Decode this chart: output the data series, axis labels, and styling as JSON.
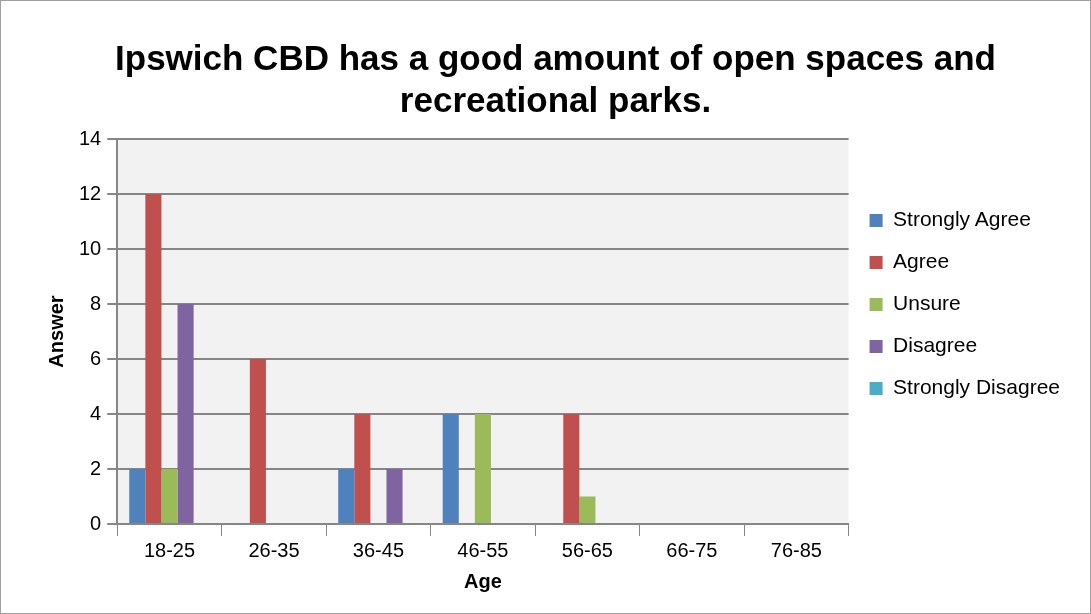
{
  "chart_data": {
    "type": "bar",
    "title": "Ipswich CBD has a good amount of open spaces and recreational parks.",
    "xlabel": "Age",
    "ylabel": "Answer",
    "categories": [
      "18-25",
      "26-35",
      "36-45",
      "46-55",
      "56-65",
      "66-75",
      "76-85"
    ],
    "series": [
      {
        "name": "Strongly Agree",
        "color": "#4f81bd",
        "values": [
          2,
          0,
          2,
          4,
          0,
          0,
          0
        ]
      },
      {
        "name": "Agree",
        "color": "#c0504d",
        "values": [
          12,
          6,
          4,
          0,
          4,
          0,
          0
        ]
      },
      {
        "name": "Unsure",
        "color": "#9bbb59",
        "values": [
          2,
          0,
          0,
          4,
          1,
          0,
          0
        ]
      },
      {
        "name": "Disagree",
        "color": "#8064a2",
        "values": [
          8,
          0,
          2,
          0,
          0,
          0,
          0
        ]
      },
      {
        "name": "Strongly Disagree",
        "color": "#4bacc6",
        "values": [
          0,
          0,
          0,
          0,
          0,
          0,
          0
        ]
      }
    ],
    "ylim": [
      0,
      14
    ],
    "yticks": [
      0,
      2,
      4,
      6,
      8,
      10,
      12,
      14
    ],
    "grid": "y",
    "legend": "right"
  }
}
